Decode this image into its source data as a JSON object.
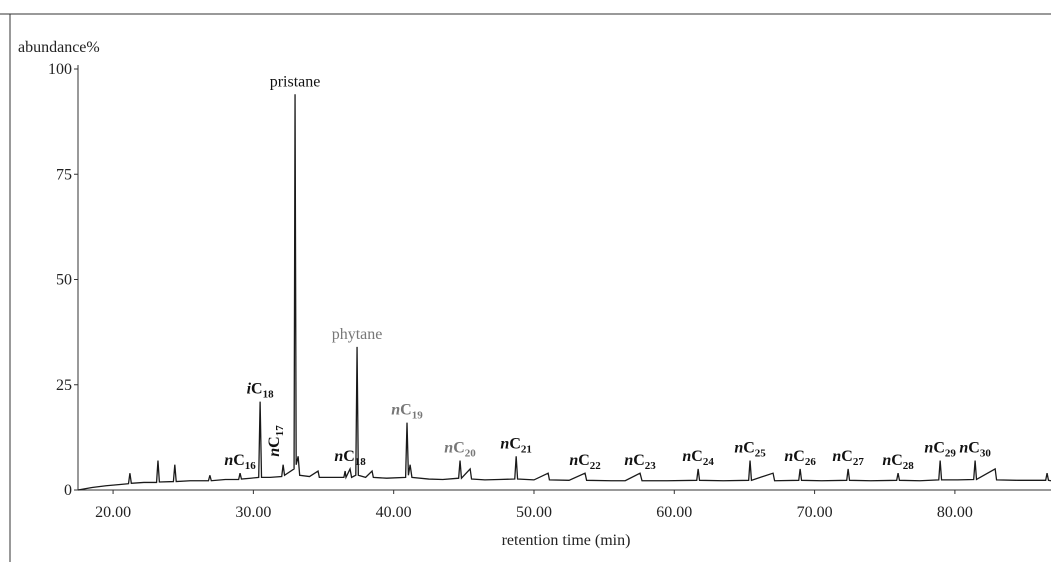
{
  "chart_data": {
    "type": "line",
    "ylabel": "abundance%",
    "xlabel": "retention time (min)",
    "xlim": [
      17.5,
      86.85
    ],
    "ylim": [
      0,
      100
    ],
    "xticks": [
      {
        "value": 20,
        "label": "20.00"
      },
      {
        "value": 30,
        "label": "30.00"
      },
      {
        "value": 40,
        "label": "40.00"
      },
      {
        "value": 50,
        "label": "50.00"
      },
      {
        "value": 60,
        "label": "60.00"
      },
      {
        "value": 70,
        "label": "70.00"
      },
      {
        "value": 80,
        "label": "80.00"
      }
    ],
    "yticks": [
      0,
      25,
      50,
      75,
      100
    ],
    "series": [
      {
        "color": "#1a1a1a",
        "x": [
          17.5,
          18.5,
          19.5,
          20.5,
          21.1,
          21.2,
          21.3,
          22.2,
          23.1,
          23.2,
          23.3,
          24.3,
          24.4,
          24.5,
          25.5,
          26.8,
          26.9,
          27.0,
          28.0,
          28.95,
          29.05,
          29.15,
          29.8,
          30.38,
          30.48,
          30.58,
          31.2,
          32.02,
          32.12,
          32.22,
          32.9,
          32.97,
          33.05,
          33.19,
          33.3,
          34.0,
          34.61,
          34.7,
          35.5,
          36.45,
          36.54,
          36.6,
          36.89,
          37.0,
          37.3,
          37.39,
          37.48,
          38.0,
          38.46,
          38.55,
          39.5,
          40.85,
          40.95,
          41.05,
          41.17,
          41.3,
          42.5,
          43.5,
          44.63,
          44.73,
          44.83,
          45.45,
          45.55,
          46.5,
          47.5,
          48.63,
          48.73,
          48.83,
          50.0,
          51.01,
          51.1,
          52.5,
          53.64,
          53.75,
          55.5,
          56.5,
          57.56,
          57.7,
          59.5,
          61.6,
          61.7,
          61.8,
          63.5,
          65.3,
          65.4,
          65.5,
          67.04,
          67.15,
          68.87,
          68.97,
          69.07,
          70.5,
          72.29,
          72.39,
          72.49,
          74.0,
          75.85,
          75.95,
          76.05,
          77.5,
          78.85,
          78.95,
          79.05,
          80.2,
          81.34,
          81.44,
          81.54,
          82.87,
          82.97,
          84.5,
          86.47,
          86.57,
          86.67,
          86.85
        ],
        "values": [
          0,
          0.6,
          1,
          1.3,
          1.5,
          4,
          1.6,
          1.8,
          1.8,
          7,
          1.9,
          2,
          6,
          2,
          2.2,
          2.2,
          3.5,
          2.2,
          2.5,
          2.5,
          4,
          2.6,
          2.8,
          3,
          21,
          3,
          3,
          3.2,
          6,
          3.5,
          5,
          94,
          6,
          8,
          3.5,
          3.2,
          4.5,
          3,
          3,
          3,
          4.5,
          3,
          5,
          3,
          3.5,
          34,
          3.5,
          3,
          4.5,
          3,
          2.8,
          3,
          16,
          3.5,
          6,
          3,
          2.6,
          2.5,
          2.8,
          7,
          2.8,
          5,
          2.6,
          2.4,
          2.5,
          2.6,
          8,
          2.6,
          2.4,
          4,
          2.4,
          2.3,
          4,
          2.3,
          2.2,
          2.2,
          4,
          2.2,
          2.2,
          2.3,
          5,
          2.3,
          2.2,
          2.3,
          7,
          2.3,
          4,
          2.2,
          2.3,
          5,
          2.3,
          2.2,
          2.3,
          5,
          2.3,
          2.2,
          2.3,
          4,
          2.3,
          2.2,
          2.4,
          7,
          2.4,
          2.4,
          2.5,
          7,
          2.5,
          5,
          2.4,
          2.3,
          2.3,
          4,
          2.3,
          2.2
        ]
      }
    ],
    "annotations": [
      {
        "prefix": "n",
        "body": "C",
        "sub": "16",
        "x": 29.05,
        "y": 4,
        "color": "#111111"
      },
      {
        "prefix": "i",
        "body": "C",
        "sub": "18",
        "x": 30.48,
        "y": 21,
        "color": "#111111"
      },
      {
        "prefix": "n",
        "body": "C",
        "sub": "17",
        "x": 32.12,
        "y": 6,
        "color": "#111111",
        "orientation": "vertical"
      },
      {
        "body": "pristane",
        "x": 32.97,
        "y": 94,
        "color": "#111111"
      },
      {
        "prefix": "n",
        "body": "C",
        "sub": "18",
        "x": 36.89,
        "y": 5,
        "color": "#111111"
      },
      {
        "body": "phytane",
        "x": 37.39,
        "y": 34,
        "color": "#777777"
      },
      {
        "prefix": "n",
        "body": "C",
        "sub": "19",
        "x": 40.95,
        "y": 16,
        "color": "#777777"
      },
      {
        "prefix": "n",
        "body": "C",
        "sub": "20",
        "x": 44.73,
        "y": 7,
        "color": "#777777"
      },
      {
        "prefix": "n",
        "body": "C",
        "sub": "21",
        "x": 48.73,
        "y": 8,
        "color": "#111111"
      },
      {
        "prefix": "n",
        "body": "C",
        "sub": "22",
        "x": 53.64,
        "y": 4,
        "color": "#111111"
      },
      {
        "prefix": "n",
        "body": "C",
        "sub": "23",
        "x": 57.56,
        "y": 4,
        "color": "#111111"
      },
      {
        "prefix": "n",
        "body": "C",
        "sub": "24",
        "x": 61.7,
        "y": 5,
        "color": "#111111"
      },
      {
        "prefix": "n",
        "body": "C",
        "sub": "25",
        "x": 65.4,
        "y": 7,
        "color": "#111111"
      },
      {
        "prefix": "n",
        "body": "C",
        "sub": "26",
        "x": 68.97,
        "y": 5,
        "color": "#111111"
      },
      {
        "prefix": "n",
        "body": "C",
        "sub": "27",
        "x": 72.39,
        "y": 5,
        "color": "#111111"
      },
      {
        "prefix": "n",
        "body": "C",
        "sub": "28",
        "x": 75.95,
        "y": 4,
        "color": "#111111"
      },
      {
        "prefix": "n",
        "body": "C",
        "sub": "29",
        "x": 78.95,
        "y": 7,
        "color": "#111111"
      },
      {
        "prefix": "n",
        "body": "C",
        "sub": "30",
        "x": 81.44,
        "y": 7,
        "color": "#111111"
      }
    ]
  }
}
